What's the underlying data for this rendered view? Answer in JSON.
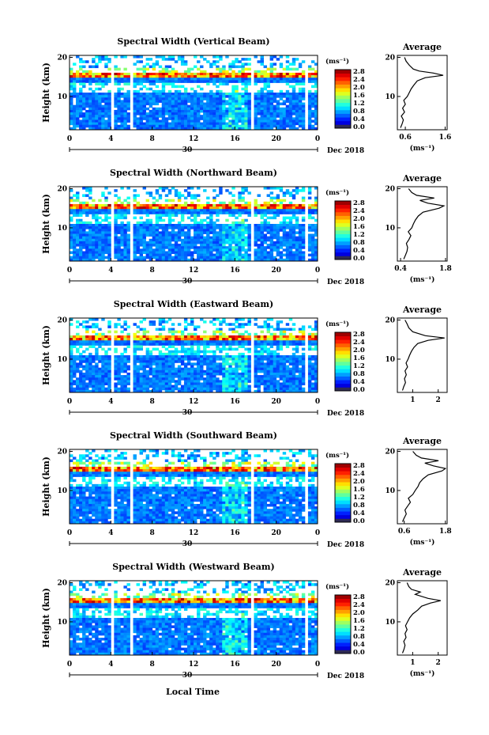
{
  "figure": {
    "x_axis_label": "Local Time",
    "date_label": "Dec 2018",
    "day_label": "30"
  },
  "chart_data": [
    {
      "type": "heatmap",
      "title": "Spectral Width (Vertical Beam)",
      "ylabel": "Height (km)",
      "x": {
        "ticks": [
          "0",
          "4",
          "8",
          "12",
          "16",
          "20",
          "0"
        ],
        "range_hours": [
          0,
          24
        ]
      },
      "y": {
        "ticks": [
          "10",
          "20"
        ],
        "range_km": [
          1.5,
          20.5
        ]
      },
      "colorbar": {
        "unit": "(ms⁻¹)",
        "ticks": [
          "0.0",
          "0.4",
          "0.8",
          "1.2",
          "1.6",
          "2.0",
          "2.4",
          "2.8"
        ],
        "range": [
          0,
          3.0
        ]
      },
      "data_gaps_hours": [
        4.2,
        5.9,
        17.7,
        22.8
      ],
      "average_panel": {
        "title": "Average",
        "xlabel": "(ms⁻¹)",
        "x_ticks": [
          "0.6",
          "1.6"
        ],
        "x_range": [
          0.4,
          1.65
        ],
        "y_ticks": [
          "10",
          "20"
        ],
        "y_range_km": [
          1.5,
          20.5
        ],
        "profile": [
          {
            "h": 2.0,
            "w": 0.48
          },
          {
            "h": 3.0,
            "w": 0.52
          },
          {
            "h": 4.0,
            "w": 0.55
          },
          {
            "h": 5.0,
            "w": 0.5
          },
          {
            "h": 6.0,
            "w": 0.58
          },
          {
            "h": 7.0,
            "w": 0.53
          },
          {
            "h": 8.0,
            "w": 0.6
          },
          {
            "h": 9.0,
            "w": 0.56
          },
          {
            "h": 10.0,
            "w": 0.65
          },
          {
            "h": 11.0,
            "w": 0.7
          },
          {
            "h": 12.0,
            "w": 0.75
          },
          {
            "h": 13.0,
            "w": 0.82
          },
          {
            "h": 14.0,
            "w": 0.9
          },
          {
            "h": 14.8,
            "w": 1.1
          },
          {
            "h": 15.4,
            "w": 1.55
          },
          {
            "h": 16.0,
            "w": 1.3
          },
          {
            "h": 16.5,
            "w": 0.95
          },
          {
            "h": 17.0,
            "w": 0.8
          },
          {
            "h": 18.0,
            "w": 0.7
          },
          {
            "h": 19.0,
            "w": 0.62
          },
          {
            "h": 20.0,
            "w": 0.58
          }
        ]
      }
    },
    {
      "type": "heatmap",
      "title": "Spectral Width (Northward Beam)",
      "ylabel": "Height (km)",
      "x": {
        "ticks": [
          "0",
          "4",
          "8",
          "12",
          "16",
          "20",
          "0"
        ],
        "range_hours": [
          0,
          24
        ]
      },
      "y": {
        "ticks": [
          "10",
          "20"
        ],
        "range_km": [
          1.5,
          20.5
        ]
      },
      "colorbar": {
        "unit": "(ms⁻¹)",
        "ticks": [
          "0.0",
          "0.4",
          "0.8",
          "1.2",
          "1.6",
          "2.0",
          "2.4",
          "2.8"
        ],
        "range": [
          0,
          3.0
        ]
      },
      "data_gaps_hours": [
        4.2,
        5.9,
        17.7,
        22.8
      ],
      "average_panel": {
        "title": "Average",
        "xlabel": "(ms⁻¹)",
        "x_ticks": [
          "0.4",
          "1.8"
        ],
        "x_range": [
          0.3,
          1.85
        ],
        "y_ticks": [
          "10",
          "20"
        ],
        "y_range_km": [
          1.5,
          20.5
        ],
        "profile": [
          {
            "h": 2.0,
            "w": 0.5
          },
          {
            "h": 3.0,
            "w": 0.55
          },
          {
            "h": 4.0,
            "w": 0.6
          },
          {
            "h": 5.0,
            "w": 0.62
          },
          {
            "h": 6.0,
            "w": 0.58
          },
          {
            "h": 7.0,
            "w": 0.66
          },
          {
            "h": 8.0,
            "w": 0.72
          },
          {
            "h": 9.0,
            "w": 0.64
          },
          {
            "h": 10.0,
            "w": 0.75
          },
          {
            "h": 11.0,
            "w": 0.8
          },
          {
            "h": 12.0,
            "w": 0.86
          },
          {
            "h": 13.0,
            "w": 0.95
          },
          {
            "h": 14.0,
            "w": 1.1
          },
          {
            "h": 15.0,
            "w": 1.6
          },
          {
            "h": 15.6,
            "w": 1.75
          },
          {
            "h": 16.3,
            "w": 1.25
          },
          {
            "h": 17.0,
            "w": 1.0
          },
          {
            "h": 17.6,
            "w": 1.45
          },
          {
            "h": 18.3,
            "w": 0.9
          },
          {
            "h": 19.0,
            "w": 0.75
          },
          {
            "h": 20.0,
            "w": 0.65
          }
        ]
      }
    },
    {
      "type": "heatmap",
      "title": "Spectral Width (Eastward Beam)",
      "ylabel": "Height (km)",
      "x": {
        "ticks": [
          "0",
          "4",
          "8",
          "12",
          "16",
          "20",
          "0"
        ],
        "range_hours": [
          0,
          24
        ]
      },
      "y": {
        "ticks": [
          "10",
          "20"
        ],
        "range_km": [
          1.5,
          20.5
        ]
      },
      "colorbar": {
        "unit": "(ms⁻¹)",
        "ticks": [
          "0.0",
          "0.4",
          "0.8",
          "1.2",
          "1.6",
          "2.0",
          "2.4",
          "2.8"
        ],
        "range": [
          0,
          3.0
        ]
      },
      "data_gaps_hours": [
        4.2,
        5.9,
        17.7,
        22.8
      ],
      "average_panel": {
        "title": "Average",
        "xlabel": "",
        "x_ticks": [
          "1",
          "2"
        ],
        "x_range": [
          0.4,
          2.35
        ],
        "y_ticks": [
          "10",
          "20"
        ],
        "y_range_km": [
          1.5,
          20.5
        ],
        "profile": [
          {
            "h": 2.0,
            "w": 0.6
          },
          {
            "h": 3.0,
            "w": 0.65
          },
          {
            "h": 4.0,
            "w": 0.72
          },
          {
            "h": 5.0,
            "w": 0.68
          },
          {
            "h": 6.0,
            "w": 0.75
          },
          {
            "h": 7.0,
            "w": 0.7
          },
          {
            "h": 8.0,
            "w": 0.8
          },
          {
            "h": 9.0,
            "w": 0.74
          },
          {
            "h": 10.0,
            "w": 0.82
          },
          {
            "h": 11.0,
            "w": 0.88
          },
          {
            "h": 12.0,
            "w": 0.95
          },
          {
            "h": 13.0,
            "w": 1.05
          },
          {
            "h": 14.0,
            "w": 1.2
          },
          {
            "h": 14.8,
            "w": 1.6
          },
          {
            "h": 15.4,
            "w": 2.25
          },
          {
            "h": 16.0,
            "w": 1.5
          },
          {
            "h": 17.0,
            "w": 1.0
          },
          {
            "h": 18.0,
            "w": 0.85
          },
          {
            "h": 19.0,
            "w": 0.78
          },
          {
            "h": 20.0,
            "w": 0.7
          }
        ]
      }
    },
    {
      "type": "heatmap",
      "title": "Spectral Width (Southward Beam)",
      "ylabel": "Height (km)",
      "x": {
        "ticks": [
          "0",
          "4",
          "8",
          "12",
          "16",
          "20",
          "0"
        ],
        "range_hours": [
          0,
          24
        ]
      },
      "y": {
        "ticks": [
          "10",
          "20"
        ],
        "range_km": [
          1.5,
          20.5
        ]
      },
      "colorbar": {
        "unit": "(ms⁻¹)",
        "ticks": [
          "0.0",
          "0.4",
          "0.8",
          "1.2",
          "1.6",
          "2.0",
          "2.4",
          "2.8"
        ],
        "range": [
          0,
          3.0
        ]
      },
      "data_gaps_hours": [
        4.2,
        5.9,
        17.7,
        22.8
      ],
      "average_panel": {
        "title": "Average",
        "xlabel": "(ms⁻¹)",
        "x_ticks": [
          "0.6",
          "1.8"
        ],
        "x_range": [
          0.4,
          1.85
        ],
        "y_ticks": [
          "10",
          "20"
        ],
        "y_range_km": [
          1.5,
          20.5
        ],
        "profile": [
          {
            "h": 2.0,
            "w": 0.55
          },
          {
            "h": 3.0,
            "w": 0.6
          },
          {
            "h": 4.0,
            "w": 0.66
          },
          {
            "h": 5.0,
            "w": 0.62
          },
          {
            "h": 6.0,
            "w": 0.7
          },
          {
            "h": 7.0,
            "w": 0.78
          },
          {
            "h": 8.0,
            "w": 0.72
          },
          {
            "h": 9.0,
            "w": 0.85
          },
          {
            "h": 10.0,
            "w": 0.92
          },
          {
            "h": 11.0,
            "w": 1.0
          },
          {
            "h": 12.0,
            "w": 1.05
          },
          {
            "h": 13.0,
            "w": 1.15
          },
          {
            "h": 14.0,
            "w": 1.3
          },
          {
            "h": 15.0,
            "w": 1.7
          },
          {
            "h": 15.6,
            "w": 1.8
          },
          {
            "h": 16.3,
            "w": 1.45
          },
          {
            "h": 17.0,
            "w": 1.2
          },
          {
            "h": 17.6,
            "w": 1.6
          },
          {
            "h": 18.3,
            "w": 1.1
          },
          {
            "h": 19.0,
            "w": 0.95
          },
          {
            "h": 20.0,
            "w": 0.85
          }
        ]
      }
    },
    {
      "type": "heatmap",
      "title": "Spectral Width (Westward Beam)",
      "ylabel": "Height (km)",
      "x": {
        "ticks": [
          "0",
          "4",
          "8",
          "12",
          "16",
          "20",
          "0"
        ],
        "range_hours": [
          0,
          24
        ]
      },
      "y": {
        "ticks": [
          "10",
          "20"
        ],
        "range_km": [
          1.5,
          20.5
        ]
      },
      "colorbar": {
        "unit": "(ms⁻¹)",
        "ticks": [
          "0.0",
          "0.4",
          "0.8",
          "1.2",
          "1.6",
          "2.0",
          "2.4",
          "2.8"
        ],
        "range": [
          0,
          3.0
        ]
      },
      "data_gaps_hours": [
        4.2,
        5.9,
        17.7,
        22.8
      ],
      "average_panel": {
        "title": "Average",
        "xlabel": "(ms⁻¹)",
        "x_ticks": [
          "1",
          "2"
        ],
        "x_range": [
          0.4,
          2.35
        ],
        "y_ticks": [
          "10",
          "20"
        ],
        "y_range_km": [
          1.5,
          20.5
        ],
        "profile": [
          {
            "h": 2.0,
            "w": 0.6
          },
          {
            "h": 3.0,
            "w": 0.66
          },
          {
            "h": 4.0,
            "w": 0.7
          },
          {
            "h": 5.0,
            "w": 0.65
          },
          {
            "h": 6.0,
            "w": 0.74
          },
          {
            "h": 7.0,
            "w": 0.7
          },
          {
            "h": 8.0,
            "w": 0.78
          },
          {
            "h": 9.0,
            "w": 0.72
          },
          {
            "h": 10.0,
            "w": 0.8
          },
          {
            "h": 11.0,
            "w": 0.88
          },
          {
            "h": 12.0,
            "w": 1.0
          },
          {
            "h": 13.0,
            "w": 1.2
          },
          {
            "h": 14.0,
            "w": 1.35
          },
          {
            "h": 14.8,
            "w": 1.7
          },
          {
            "h": 15.4,
            "w": 2.1
          },
          {
            "h": 16.0,
            "w": 1.6
          },
          {
            "h": 17.0,
            "w": 1.1
          },
          {
            "h": 17.6,
            "w": 1.3
          },
          {
            "h": 18.3,
            "w": 0.95
          },
          {
            "h": 19.0,
            "w": 0.85
          },
          {
            "h": 20.0,
            "w": 0.78
          }
        ]
      }
    }
  ]
}
